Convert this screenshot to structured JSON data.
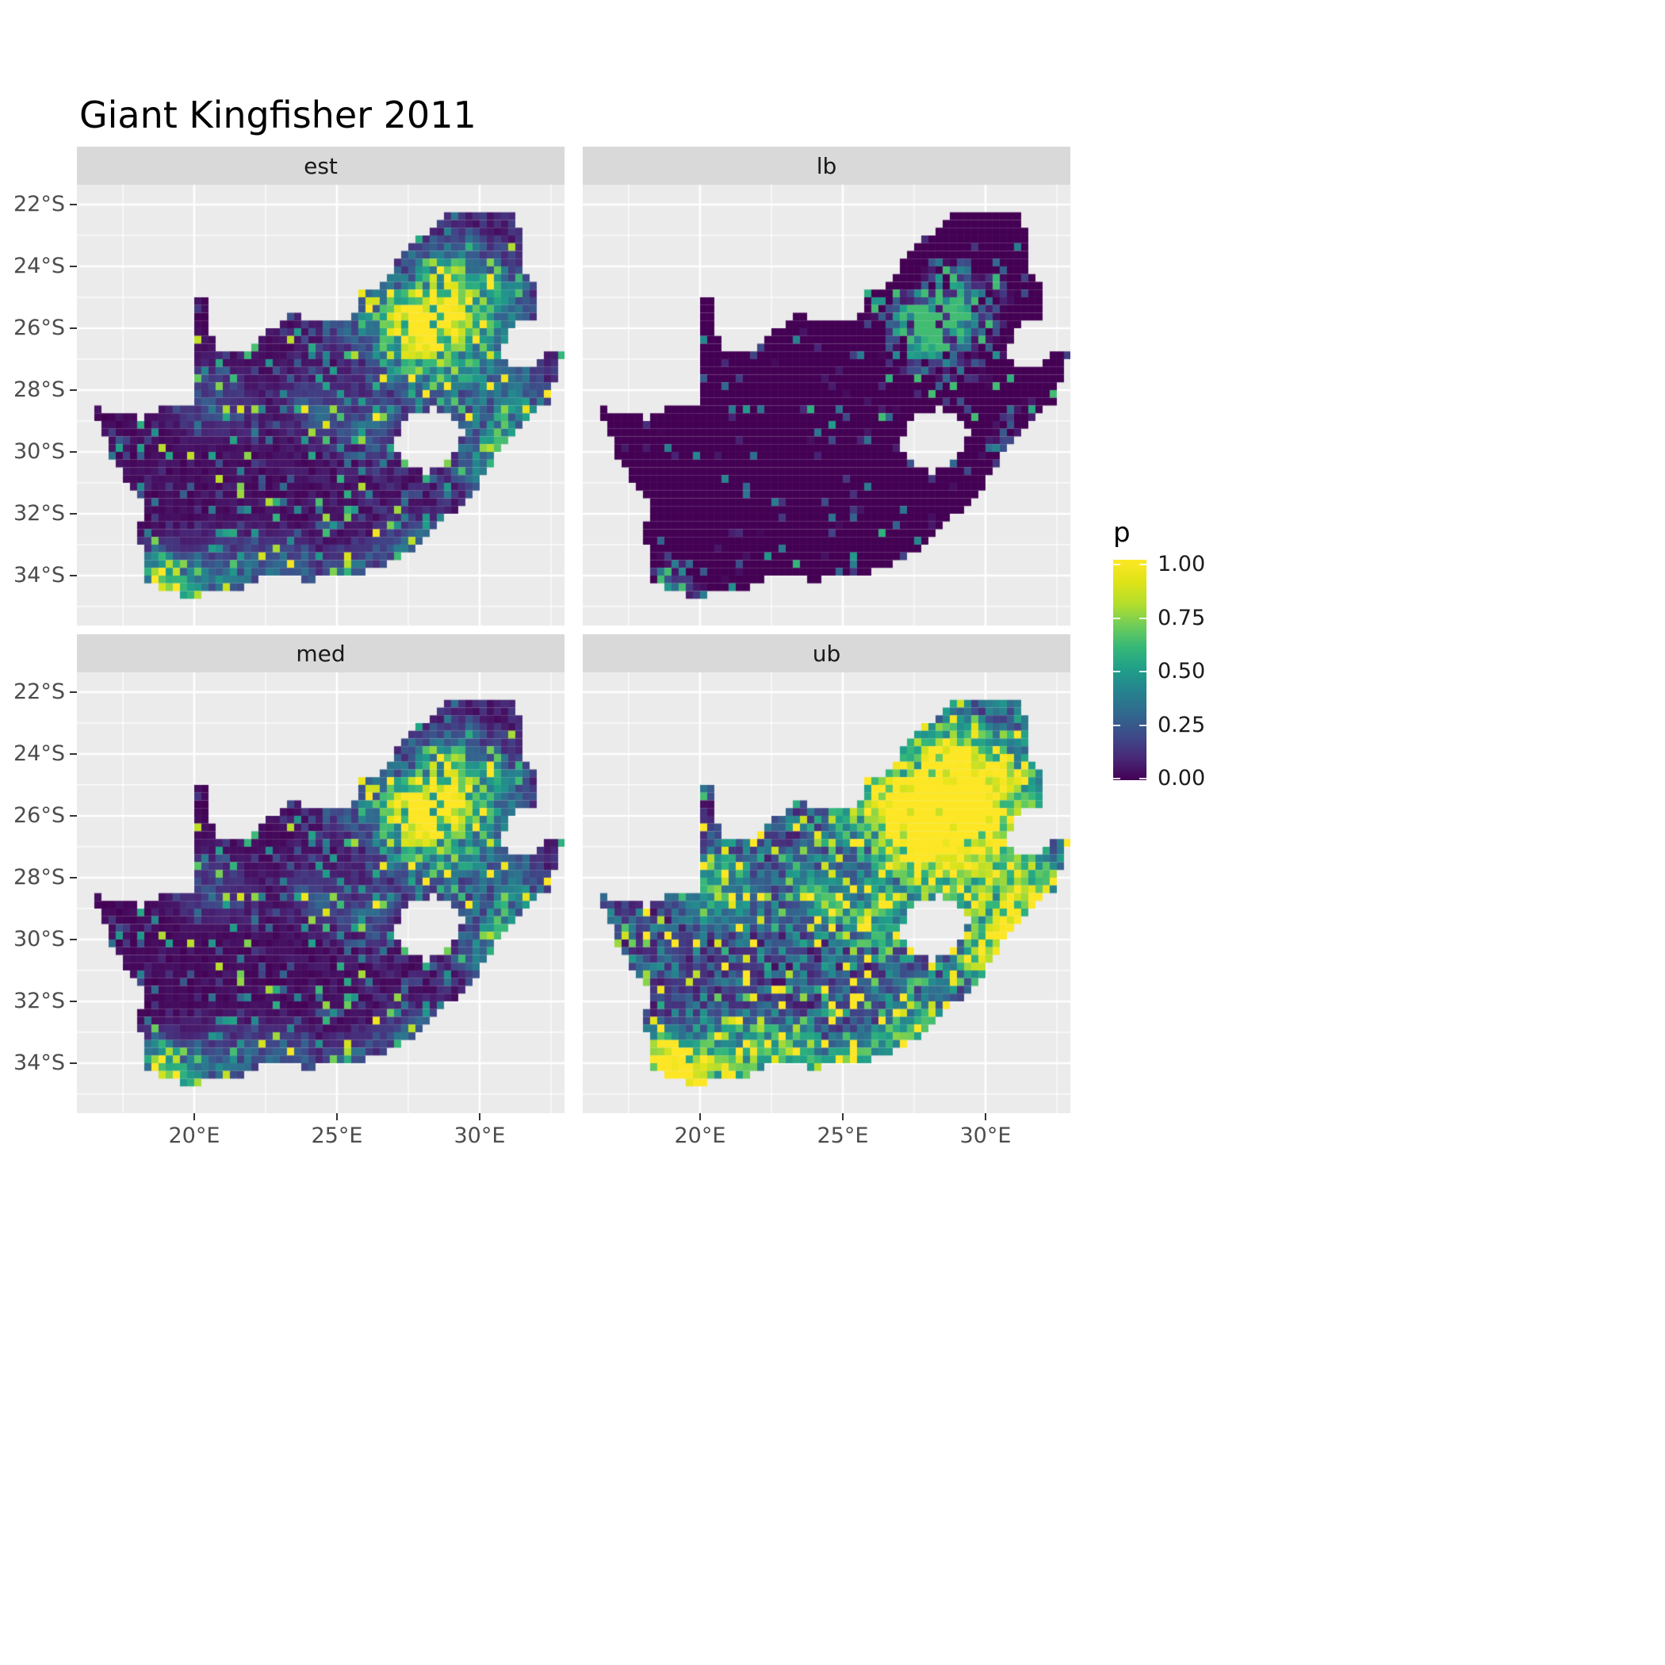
{
  "title": "Giant Kingfisher 2011",
  "facets": [
    {
      "id": "est",
      "label": "est"
    },
    {
      "id": "lb",
      "label": "lb"
    },
    {
      "id": "med",
      "label": "med"
    },
    {
      "id": "ub",
      "label": "ub"
    }
  ],
  "axes": {
    "x_tick_labels": [
      "20°E",
      "25°E",
      "30°E"
    ],
    "y_tick_labels": [
      "22°S",
      "24°S",
      "26°S",
      "28°S",
      "30°S",
      "32°S",
      "34°S"
    ]
  },
  "legend": {
    "title": "p",
    "tick_labels": [
      "1.00",
      "0.75",
      "0.50",
      "0.25",
      "0.00"
    ],
    "tick_values": [
      1.0,
      0.75,
      0.5,
      0.25,
      0.0
    ]
  },
  "chart_data": {
    "type": "heatmap",
    "subtype": "faceted quarter-degree raster maps of South Africa (ggplot2 style)",
    "title": "Giant Kingfisher 2011",
    "facets": [
      "est",
      "lb",
      "med",
      "ub"
    ],
    "value_name": "p",
    "value_range": [
      0,
      1
    ],
    "x_ticks_lon_E": [
      20,
      25,
      30
    ],
    "y_ticks_lat_S": [
      -22,
      -24,
      -26,
      -28,
      -30,
      -32,
      -34
    ],
    "lon_range_E": [
      15.9,
      33.2
    ],
    "lat_range_S": [
      -35.6,
      -21.4
    ],
    "cell_size_deg": 0.25,
    "grid": "white major and minor gridlines on grey panels",
    "legend_position": "right",
    "palette_viridis": [
      [
        0,
        68,
        1,
        84
      ],
      [
        0.1,
        72,
        40,
        120
      ],
      [
        0.2,
        62,
        74,
        137
      ],
      [
        0.3,
        49,
        104,
        142
      ],
      [
        0.4,
        38,
        130,
        142
      ],
      [
        0.5,
        31,
        158,
        137
      ],
      [
        0.6,
        53,
        183,
        121
      ],
      [
        0.7,
        109,
        205,
        89
      ],
      [
        0.8,
        180,
        222,
        44
      ],
      [
        0.9,
        223,
        227,
        24
      ],
      [
        1,
        253,
        231,
        37
      ]
    ],
    "theme": {
      "panel_bg": "#EBEBEB",
      "strip_bg": "#D9D9D9",
      "gridline": "#FFFFFF",
      "axis_text": "#4D4D4D",
      "strip_text": "#1A1A1A",
      "title_text": "#000000"
    },
    "facet_summaries": {
      "est": "mostly p≈0 (dark purple) with scattered mid/high cells; hotspots around Gauteng (27-29E, 25-27S), the southwest Cape, and the south and east coasts",
      "lb": "lower bound: almost entirely p≈0 with only faint cells near the strongest hotspots",
      "med": "similar to est: mostly p≈0 with the same hotspot pattern",
      "ub": "upper bound: widespread elevated values; large yellow-green patches over Gauteng/NE interior, the southwest Cape and the coasts, teal speckle elsewhere"
    },
    "render_model": {
      "note": "Raster values are reconstructed procedurally (per-0.25-degree-cell values estimated from the image): a smooth hotspot field F plus deterministic random speckle, transformed per facet.",
      "facet_transforms": {
        "est": "p = F",
        "lb": "p = max(0, 1.15*F - 0.5)^1.1",
        "med": "p = F^1.08",
        "ub": "p = min(1, 1.45*F^0.75 + 0.32*n^2.5)"
      },
      "hotspots_lon_lat_sigma_amp": [
        [
          28.05,
          -25.95,
          1.05,
          0.85
        ],
        [
          27.1,
          -25.4,
          0.6,
          0.35
        ],
        [
          28.6,
          -24.85,
          0.85,
          0.4
        ],
        [
          29.45,
          -23.85,
          0.55,
          0.3
        ],
        [
          30.0,
          -25.35,
          0.8,
          0.4
        ],
        [
          30.95,
          -24.9,
          0.6,
          0.3
        ],
        [
          29.2,
          -26.55,
          0.9,
          0.3
        ],
        [
          27.3,
          -27.05,
          0.8,
          0.25
        ],
        [
          26.2,
          -29.1,
          0.55,
          0.3
        ],
        [
          24.75,
          -28.75,
          0.5,
          0.22
        ],
        [
          29.0,
          -26.5,
          3.0,
          0.1
        ],
        [
          18.75,
          -33.95,
          0.55,
          0.8
        ],
        [
          19.2,
          -34.45,
          0.6,
          0.5
        ],
        [
          20.6,
          -34.3,
          0.9,
          0.35
        ],
        [
          22.25,
          -33.95,
          0.8,
          0.3
        ],
        [
          23.7,
          -33.95,
          0.6,
          0.32
        ],
        [
          25.55,
          -33.85,
          0.5,
          0.4
        ],
        [
          27.0,
          -33.35,
          0.6,
          0.3
        ],
        [
          27.95,
          -32.95,
          0.5,
          0.32
        ],
        [
          30.9,
          -29.85,
          0.6,
          0.5
        ],
        [
          30.15,
          -30.65,
          0.6,
          0.32
        ],
        [
          31.4,
          -28.75,
          0.7,
          0.35
        ],
        [
          29.7,
          -28.6,
          0.6,
          0.25
        ],
        [
          30.75,
          -27.3,
          0.7,
          0.22
        ],
        [
          25.6,
          -25.8,
          0.5,
          0.3
        ],
        [
          20.0,
          -28.2,
          0.7,
          0.25
        ],
        [
          21.2,
          -28.5,
          0.6,
          0.2
        ],
        [
          24.0,
          -28.3,
          0.7,
          0.18
        ]
      ]
    },
    "south_africa_outline": [
      [
        16.45,
        -28.6
      ],
      [
        17.6,
        -28.75
      ],
      [
        18.2,
        -28.9
      ],
      [
        19.0,
        -28.5
      ],
      [
        19.6,
        -28.45
      ],
      [
        19.99,
        -28.43
      ],
      [
        19.99,
        -24.9
      ],
      [
        20.4,
        -25.1
      ],
      [
        20.55,
        -25.8
      ],
      [
        20.7,
        -26.85
      ],
      [
        21.3,
        -26.85
      ],
      [
        21.9,
        -26.65
      ],
      [
        22.6,
        -26.1
      ],
      [
        23.0,
        -25.95
      ],
      [
        23.45,
        -25.55
      ],
      [
        24.0,
        -25.75
      ],
      [
        24.75,
        -25.8
      ],
      [
        25.4,
        -25.7
      ],
      [
        25.6,
        -25.45
      ],
      [
        25.9,
        -24.75
      ],
      [
        26.5,
        -24.6
      ],
      [
        26.9,
        -24.3
      ],
      [
        27.2,
        -23.6
      ],
      [
        27.8,
        -23.15
      ],
      [
        28.35,
        -22.8
      ],
      [
        28.95,
        -22.3
      ],
      [
        29.35,
        -22.15
      ],
      [
        30.1,
        -22.25
      ],
      [
        30.85,
        -22.3
      ],
      [
        31.3,
        -22.35
      ],
      [
        31.55,
        -23.5
      ],
      [
        31.55,
        -24.2
      ],
      [
        31.95,
        -24.7
      ],
      [
        32.02,
        -25.65
      ],
      [
        31.35,
        -25.75
      ],
      [
        30.9,
        -26.2
      ],
      [
        30.82,
        -26.85
      ],
      [
        31.15,
        -27.2
      ],
      [
        31.95,
        -27.32
      ],
      [
        32.15,
        -26.86
      ],
      [
        32.9,
        -26.86
      ],
      [
        32.5,
        -28.3
      ],
      [
        31.9,
        -28.7
      ],
      [
        31.1,
        -29.5
      ],
      [
        30.6,
        -30.1
      ],
      [
        30.2,
        -30.75
      ],
      [
        29.4,
        -31.7
      ],
      [
        28.5,
        -32.4
      ],
      [
        27.8,
        -33.05
      ],
      [
        27.0,
        -33.5
      ],
      [
        26.35,
        -33.75
      ],
      [
        25.65,
        -34.0
      ],
      [
        24.9,
        -34.0
      ],
      [
        24.1,
        -34.15
      ],
      [
        23.3,
        -34.1
      ],
      [
        22.5,
        -34.05
      ],
      [
        21.7,
        -34.4
      ],
      [
        20.45,
        -34.45
      ],
      [
        19.95,
        -34.8
      ],
      [
        19.3,
        -34.6
      ],
      [
        18.85,
        -34.4
      ],
      [
        18.4,
        -34.3
      ],
      [
        18.3,
        -33.9
      ],
      [
        18.2,
        -33.1
      ],
      [
        17.9,
        -32.75
      ],
      [
        18.3,
        -32.0
      ],
      [
        18.1,
        -31.55
      ],
      [
        17.5,
        -30.85
      ],
      [
        17.0,
        -29.9
      ],
      [
        16.75,
        -29.2
      ]
    ],
    "lesotho_hole": [
      [
        27.05,
        -29.6
      ],
      [
        27.35,
        -29.0
      ],
      [
        27.75,
        -28.7
      ],
      [
        28.4,
        -28.6
      ],
      [
        28.95,
        -28.7
      ],
      [
        29.3,
        -29.05
      ],
      [
        29.45,
        -29.45
      ],
      [
        29.25,
        -29.9
      ],
      [
        28.8,
        -30.35
      ],
      [
        28.1,
        -30.65
      ],
      [
        27.7,
        -30.45
      ],
      [
        27.35,
        -30.2
      ],
      [
        27.0,
        -29.95
      ]
    ]
  }
}
